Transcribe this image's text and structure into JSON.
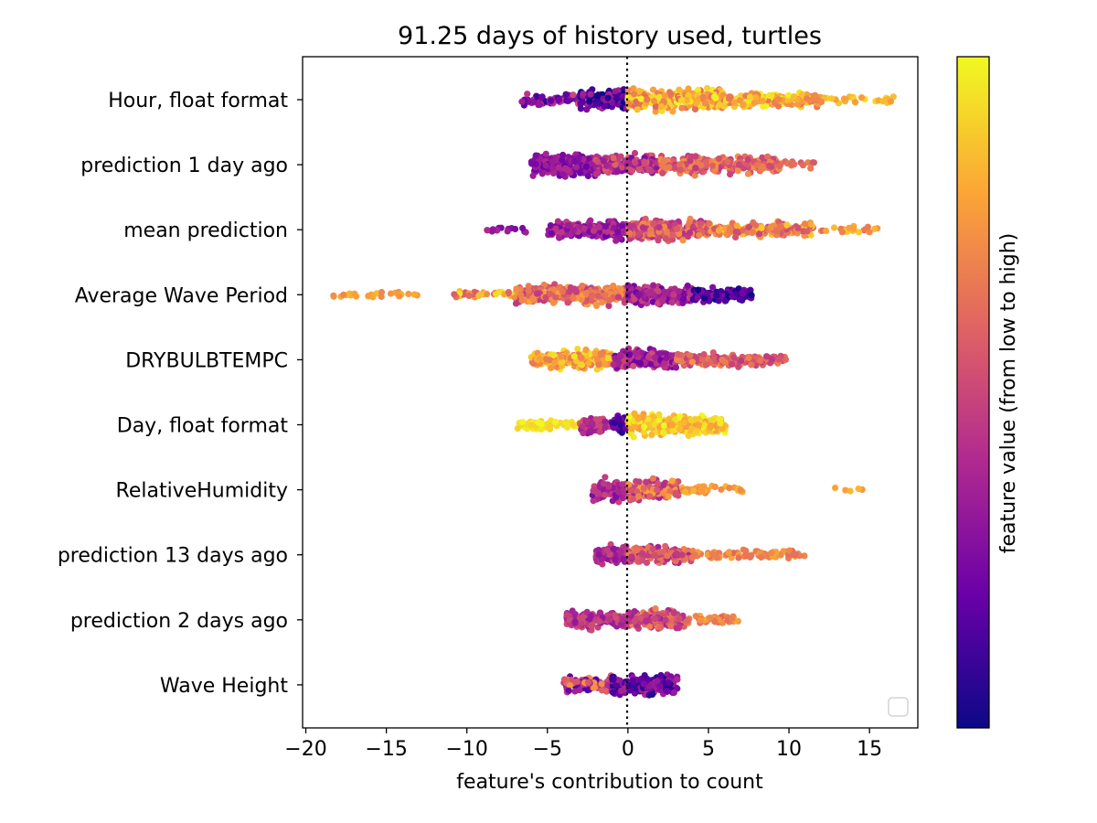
{
  "chart_data": {
    "type": "scatter",
    "subtype": "beeswarm",
    "title": "91.25 days of history used, turtles",
    "xlabel": "feature's contribution to count",
    "ylabel": "",
    "xlim": [
      -20.2,
      18.0
    ],
    "xticks": [
      -20,
      -15,
      -10,
      -5,
      0,
      5,
      10,
      15
    ],
    "xtick_labels": [
      "−20",
      "−15",
      "−10",
      "−5",
      "0",
      "5",
      "10",
      "15"
    ],
    "zero_line": 0,
    "grid": false,
    "legend": "bottom-right (empty)",
    "colormap": "plasma",
    "colorbar_label": "feature value (from low to high)",
    "colors": [
      "#0d0887",
      "#6a00a8",
      "#b12a90",
      "#e16462",
      "#fca636",
      "#f0f921"
    ],
    "features": [
      {
        "name": "Hour, float format",
        "min": -6.6,
        "max": 16.5,
        "segments": [
          {
            "from": -6.6,
            "to": -3.0,
            "density": 0.4,
            "value_low": 0.05,
            "value_high": 0.55
          },
          {
            "from": -3.0,
            "to": 0.0,
            "density": 1.0,
            "value_low": 0.0,
            "value_high": 0.4
          },
          {
            "from": 0.0,
            "to": 6.0,
            "density": 1.0,
            "value_low": 0.6,
            "value_high": 1.0
          },
          {
            "from": 6.0,
            "to": 12.0,
            "density": 0.6,
            "value_low": 0.65,
            "value_high": 1.0
          },
          {
            "from": 12.0,
            "to": 16.5,
            "density": 0.12,
            "value_low": 0.7,
            "value_high": 0.95
          }
        ]
      },
      {
        "name": "prediction 1 day ago",
        "min": -6.0,
        "max": 12.3,
        "segments": [
          {
            "from": -6.0,
            "to": -2.0,
            "density": 1.0,
            "value_low": 0.2,
            "value_high": 0.4
          },
          {
            "from": -2.0,
            "to": 2.0,
            "density": 1.0,
            "value_low": 0.25,
            "value_high": 0.6
          },
          {
            "from": 2.0,
            "to": 9.5,
            "density": 0.8,
            "value_low": 0.45,
            "value_high": 0.75
          },
          {
            "from": 9.5,
            "to": 12.3,
            "density": 0.12,
            "value_low": 0.55,
            "value_high": 0.7
          }
        ]
      },
      {
        "name": "mean prediction",
        "min": -8.8,
        "max": 15.7,
        "segments": [
          {
            "from": -8.8,
            "to": -6.0,
            "density": 0.12,
            "value_low": 0.25,
            "value_high": 0.4
          },
          {
            "from": -5.0,
            "to": 0.0,
            "density": 0.8,
            "value_low": 0.2,
            "value_high": 0.5
          },
          {
            "from": 0.0,
            "to": 5.0,
            "density": 1.0,
            "value_low": 0.4,
            "value_high": 0.75
          },
          {
            "from": 5.0,
            "to": 11.5,
            "density": 0.6,
            "value_low": 0.5,
            "value_high": 0.9
          },
          {
            "from": 11.5,
            "to": 15.7,
            "density": 0.12,
            "value_low": 0.6,
            "value_high": 0.9
          }
        ]
      },
      {
        "name": "Average Wave Period",
        "min": -18.5,
        "max": 7.7,
        "segments": [
          {
            "from": -18.5,
            "to": -12.9,
            "density": 0.1,
            "value_low": 0.7,
            "value_high": 0.85
          },
          {
            "from": -10.8,
            "to": -7.0,
            "density": 0.2,
            "value_low": 0.5,
            "value_high": 1.0
          },
          {
            "from": -7.0,
            "to": 0.0,
            "density": 0.9,
            "value_low": 0.45,
            "value_high": 0.8
          },
          {
            "from": 0.0,
            "to": 4.0,
            "density": 1.0,
            "value_low": 0.2,
            "value_high": 0.5
          },
          {
            "from": 4.0,
            "to": 7.7,
            "density": 0.6,
            "value_low": 0.0,
            "value_high": 0.3
          }
        ]
      },
      {
        "name": "DRYBULBTEMPC",
        "min": -6.0,
        "max": 9.8,
        "segments": [
          {
            "from": -6.0,
            "to": -1.0,
            "density": 0.8,
            "value_low": 0.65,
            "value_high": 0.95
          },
          {
            "from": -1.0,
            "to": 3.0,
            "density": 1.0,
            "value_low": 0.2,
            "value_high": 0.55
          },
          {
            "from": 3.0,
            "to": 9.8,
            "density": 0.5,
            "value_low": 0.45,
            "value_high": 0.75
          }
        ]
      },
      {
        "name": "Day, float format",
        "min": -7.0,
        "max": 6.1,
        "segments": [
          {
            "from": -7.0,
            "to": -3.0,
            "density": 0.25,
            "value_low": 0.9,
            "value_high": 1.0
          },
          {
            "from": -3.0,
            "to": -1.0,
            "density": 0.7,
            "value_low": 0.3,
            "value_high": 0.55
          },
          {
            "from": -1.0,
            "to": 0.0,
            "density": 0.8,
            "value_low": 0.0,
            "value_high": 0.3
          },
          {
            "from": 0.0,
            "to": 6.1,
            "density": 1.0,
            "value_low": 0.75,
            "value_high": 1.0
          }
        ]
      },
      {
        "name": "RelativeHumidity",
        "min": -2.2,
        "max": 14.6,
        "segments": [
          {
            "from": -2.2,
            "to": 0.0,
            "density": 1.0,
            "value_low": 0.25,
            "value_high": 0.5
          },
          {
            "from": 0.0,
            "to": 3.2,
            "density": 1.0,
            "value_low": 0.35,
            "value_high": 0.8
          },
          {
            "from": 3.2,
            "to": 7.2,
            "density": 0.2,
            "value_low": 0.7,
            "value_high": 0.85
          },
          {
            "from": 12.4,
            "to": 14.6,
            "density": 0.05,
            "value_low": 0.75,
            "value_high": 0.85
          }
        ]
      },
      {
        "name": "prediction 13 days ago",
        "min": -2.0,
        "max": 11.0,
        "segments": [
          {
            "from": -2.0,
            "to": 0.0,
            "density": 1.0,
            "value_low": 0.3,
            "value_high": 0.5
          },
          {
            "from": 0.0,
            "to": 4.0,
            "density": 0.9,
            "value_low": 0.35,
            "value_high": 0.7
          },
          {
            "from": 4.0,
            "to": 11.0,
            "density": 0.25,
            "value_low": 0.6,
            "value_high": 0.8
          }
        ]
      },
      {
        "name": "prediction 2 days ago",
        "min": -3.8,
        "max": 7.0,
        "segments": [
          {
            "from": -3.8,
            "to": 0.0,
            "density": 0.8,
            "value_low": 0.3,
            "value_high": 0.55
          },
          {
            "from": 0.0,
            "to": 3.5,
            "density": 1.0,
            "value_low": 0.35,
            "value_high": 0.7
          },
          {
            "from": 3.5,
            "to": 7.0,
            "density": 0.3,
            "value_low": 0.6,
            "value_high": 0.8
          }
        ]
      },
      {
        "name": "Wave Height",
        "min": -4.0,
        "max": 3.1,
        "segments": [
          {
            "from": -4.0,
            "to": -1.0,
            "density": 0.7,
            "value_low": 0.1,
            "value_high": 0.75
          },
          {
            "from": -1.0,
            "to": 3.1,
            "density": 1.0,
            "value_low": 0.05,
            "value_high": 0.4
          }
        ]
      }
    ]
  }
}
